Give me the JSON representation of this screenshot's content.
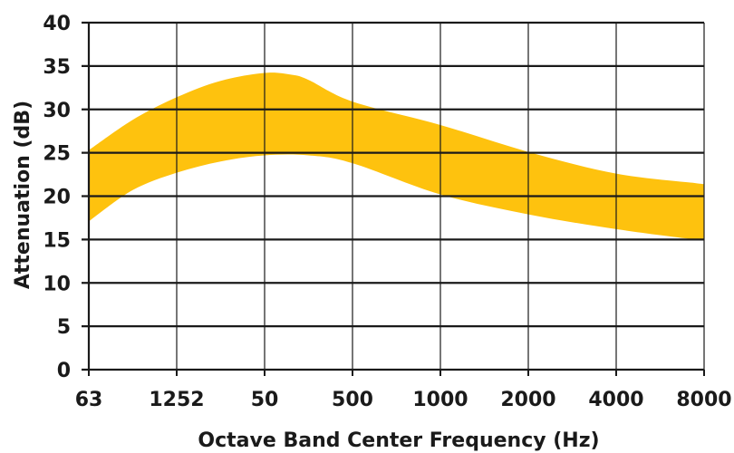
{
  "chart_data": {
    "type": "area",
    "title": "",
    "xlabel": "Octave Band Center Frequency (Hz)",
    "ylabel": "Attenuation (dB)",
    "categories": [
      "63",
      "1252",
      "50",
      "500",
      "1000",
      "2000",
      "4000",
      "8000"
    ],
    "ylim": [
      0,
      40
    ],
    "yticks": [
      0,
      5,
      10,
      15,
      20,
      25,
      30,
      35,
      40
    ],
    "grid": true,
    "band_color": "#FEC20E",
    "grid_color": "#1a1a1a",
    "upper": {
      "x": [
        0,
        0.5,
        1,
        1.5,
        2,
        2.3,
        2.5,
        3,
        4,
        5,
        6,
        6.9,
        7
      ],
      "values": [
        25.3,
        28.8,
        31.4,
        33.3,
        34.2,
        34.0,
        33.4,
        30.9,
        28.2,
        25.1,
        22.6,
        21.5,
        21.4
      ]
    },
    "lower": {
      "x": [
        0,
        0.5,
        1,
        1.5,
        2,
        2.5,
        3,
        4,
        5,
        6,
        6.9,
        7
      ],
      "values": [
        17.1,
        20.7,
        22.7,
        24.0,
        24.7,
        24.7,
        23.8,
        20.2,
        17.9,
        16.2,
        15.0,
        15.0
      ]
    }
  }
}
